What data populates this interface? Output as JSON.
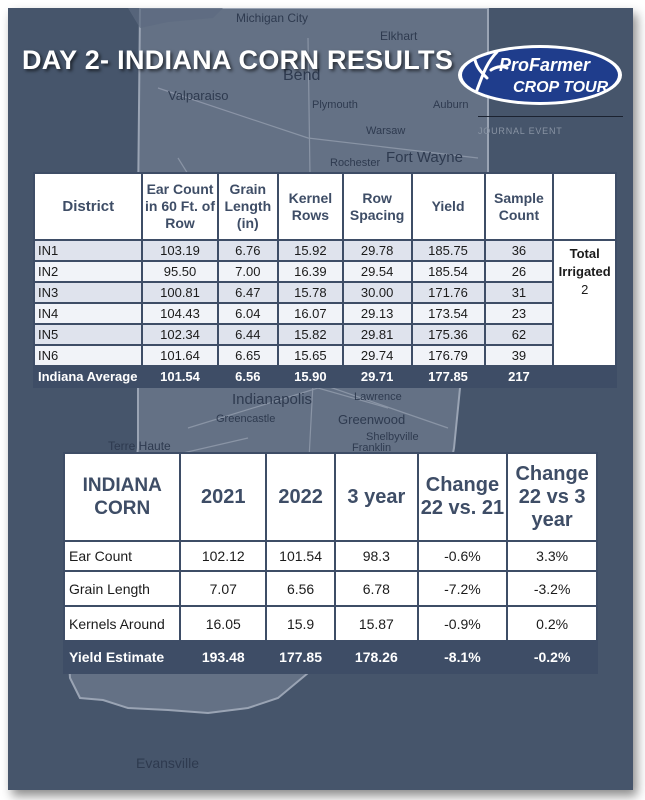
{
  "title": "DAY 2- INDIANA CORN RESULTS",
  "logo": {
    "line1": "ProFarmer",
    "line2": "CROP TOUR",
    "tagline": "JOURNAL EVENT"
  },
  "map_labels": {
    "michigan_city": "Michigan City",
    "elkhart": "Elkhart",
    "bend": "Bend",
    "valparaiso": "Valparaiso",
    "plymouth": "Plymouth",
    "auburn": "Auburn",
    "warsaw": "Warsaw",
    "rochester": "Rochester",
    "fort_wayne": "Fort Wayne",
    "indianapolis": "Indianapolis",
    "lawrence": "Lawrence",
    "greencastle": "Greencastle",
    "greenwood": "Greenwood",
    "shelbyville": "Shelbyville",
    "franklin": "Franklin",
    "terre_haute": "Terre Haute",
    "evansville": "Evansville"
  },
  "district_table": {
    "headers": {
      "district": "District",
      "ear_count": "Ear Count in 60 Ft. of Row",
      "grain_length": "Grain Length (in)",
      "kernel_rows": "Kernel Rows",
      "row_spacing": "Row Spacing",
      "yield": "Yield",
      "sample_count": "Sample Count"
    },
    "rows": [
      {
        "district": "IN1",
        "ear_count": "103.19",
        "grain_length": "6.76",
        "kernel_rows": "15.92",
        "row_spacing": "29.78",
        "yield": "185.75",
        "sample_count": "36"
      },
      {
        "district": "IN2",
        "ear_count": "95.50",
        "grain_length": "7.00",
        "kernel_rows": "16.39",
        "row_spacing": "29.54",
        "yield": "185.54",
        "sample_count": "26"
      },
      {
        "district": "IN3",
        "ear_count": "100.81",
        "grain_length": "6.47",
        "kernel_rows": "15.78",
        "row_spacing": "30.00",
        "yield": "171.76",
        "sample_count": "31"
      },
      {
        "district": "IN4",
        "ear_count": "104.43",
        "grain_length": "6.04",
        "kernel_rows": "16.07",
        "row_spacing": "29.13",
        "yield": "173.54",
        "sample_count": "23"
      },
      {
        "district": "IN5",
        "ear_count": "102.34",
        "grain_length": "6.44",
        "kernel_rows": "15.82",
        "row_spacing": "29.81",
        "yield": "175.36",
        "sample_count": "62"
      },
      {
        "district": "IN6",
        "ear_count": "101.64",
        "grain_length": "6.65",
        "kernel_rows": "15.65",
        "row_spacing": "29.74",
        "yield": "176.79",
        "sample_count": "39"
      }
    ],
    "average": {
      "district": "Indiana Average",
      "ear_count": "101.54",
      "grain_length": "6.56",
      "kernel_rows": "15.90",
      "row_spacing": "29.71",
      "yield": "177.85",
      "sample_count": "217"
    },
    "irrigated": {
      "label": "Total Irrigated",
      "value": "2"
    }
  },
  "comparison_table": {
    "headers": {
      "label": "INDIANA CORN",
      "y2021": "2021",
      "y2022": "2022",
      "three_year": "3 year",
      "change_22_21": "Change 22 vs. 21",
      "change_22_3yr": "Change 22 vs 3 year"
    },
    "rows": [
      {
        "label": "Ear Count",
        "y2021": "102.12",
        "y2022": "101.54",
        "three_year": "98.3",
        "change_22_21": "-0.6%",
        "change_22_3yr": "3.3%"
      },
      {
        "label": "Grain Length",
        "y2021": "7.07",
        "y2022": "6.56",
        "three_year": "6.78",
        "change_22_21": "-7.2%",
        "change_22_3yr": "-3.2%"
      },
      {
        "label": "Kernels Around",
        "y2021": "16.05",
        "y2022": "15.9",
        "three_year": "15.87",
        "change_22_21": "-0.9%",
        "change_22_3yr": "0.2%"
      }
    ],
    "estimate": {
      "label": "Yield Estimate",
      "y2021": "193.48",
      "y2022": "177.85",
      "three_year": "178.26",
      "change_22_21": "-8.1%",
      "change_22_3yr": "-0.2%"
    }
  },
  "colors": {
    "background": "#46556b",
    "header_text": "#3e4d66",
    "row_band": "#dfe3ed",
    "logo_blue": "#1f3d8c"
  }
}
